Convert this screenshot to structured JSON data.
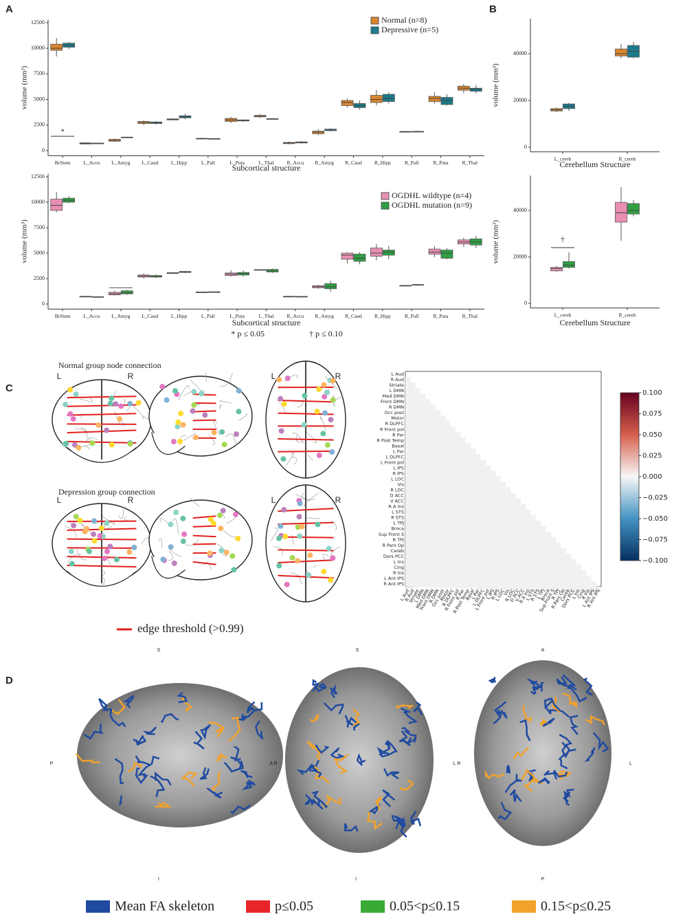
{
  "panel_labels": [
    "A",
    "B",
    "C",
    "D"
  ],
  "chart_data": [
    {
      "type": "box",
      "x_label": "Subcortical structure",
      "y_label": "volume (mm³)",
      "categories": [
        "BrStem",
        "L_Accu",
        "L_Amyg",
        "L_Caud",
        "L_Hipp",
        "L_Pall",
        "L_Puta",
        "L_Thal",
        "R_Accu",
        "R_Amyg",
        "R_Caud",
        "R_Hipp",
        "R_Pall",
        "R_Puta",
        "R_Thal"
      ],
      "series": [
        {
          "name": "Normal (n=8)",
          "color": "#d9862f",
          "values": [
            [
              9200,
              9800,
              10000,
              10400,
              11000
            ],
            [
              600,
              650,
              700,
              760,
              800
            ],
            [
              850,
              920,
              1000,
              1100,
              1200
            ],
            [
              2500,
              2650,
              2750,
              2850,
              2950
            ],
            [
              2950,
              3000,
              3050,
              3100,
              3150
            ],
            [
              1100,
              1150,
              1180,
              1200,
              1250
            ],
            [
              2700,
              2850,
              3000,
              3150,
              3300
            ],
            [
              3200,
              3300,
              3350,
              3450,
              3550
            ],
            [
              600,
              680,
              750,
              800,
              880
            ],
            [
              1500,
              1650,
              1800,
              1900,
              2100
            ],
            [
              4200,
              4400,
              4700,
              4900,
              5100
            ],
            [
              4400,
              4700,
              5000,
              5400,
              5900
            ],
            [
              1750,
              1800,
              1850,
              1870,
              1900
            ],
            [
              4600,
              4800,
              5100,
              5300,
              5700
            ],
            [
              5600,
              5900,
              6100,
              6300,
              6500
            ]
          ]
        },
        {
          "name": "Depressive (n=5)",
          "color": "#1b7a8c",
          "values": [
            [
              9900,
              10100,
              10300,
              10500,
              10600
            ],
            [
              680,
              700,
              720,
              730,
              740
            ],
            [
              1250,
              1280,
              1300,
              1320,
              1340
            ],
            [
              2550,
              2650,
              2700,
              2800,
              2900
            ],
            [
              3050,
              3200,
              3300,
              3400,
              3600
            ],
            [
              1120,
              1140,
              1160,
              1180,
              1200
            ],
            [
              2800,
              2900,
              2950,
              3000,
              3050
            ],
            [
              3050,
              3080,
              3100,
              3120,
              3150
            ],
            [
              700,
              750,
              800,
              850,
              950
            ],
            [
              1900,
              1950,
              2000,
              2100,
              2200
            ],
            [
              4000,
              4200,
              4400,
              4600,
              4900
            ],
            [
              4600,
              4800,
              5100,
              5500,
              5700
            ],
            [
              1800,
              1820,
              1850,
              1880,
              1950
            ],
            [
              4400,
              4500,
              4900,
              5200,
              5500
            ],
            [
              5600,
              5800,
              6000,
              6100,
              6400
            ]
          ]
        }
      ],
      "ylim": [
        -500,
        12800
      ],
      "yticks": [
        0,
        2500,
        5000,
        7500,
        10000,
        12500
      ],
      "annotation": "*"
    },
    {
      "type": "box",
      "x_label": "Subcortical structure",
      "y_label": "volume (mm³)",
      "categories": [
        "BrStem",
        "L_Accu",
        "L_Amyg",
        "L_Caud",
        "L_Hipp",
        "L_Pall",
        "L_Puta",
        "L_Thal",
        "R_Accu",
        "R_Amyg",
        "R_Caud",
        "R_Hipp",
        "R_Pall",
        "R_Puta",
        "R_Thal"
      ],
      "series": [
        {
          "name": "OGDHL wildtype (n=4)",
          "color": "#e88fb3",
          "values": [
            [
              9000,
              9200,
              9700,
              10300,
              11000
            ],
            [
              700,
              720,
              740,
              760,
              780
            ],
            [
              850,
              900,
              1000,
              1150,
              1300
            ],
            [
              2500,
              2650,
              2750,
              2850,
              3000
            ],
            [
              2950,
              3000,
              3050,
              3080,
              3100
            ],
            [
              1150,
              1160,
              1170,
              1180,
              1190
            ],
            [
              2700,
              2800,
              2950,
              3050,
              3300
            ],
            [
              3300,
              3320,
              3350,
              3380,
              3400
            ],
            [
              700,
              720,
              740,
              760,
              780
            ],
            [
              1500,
              1600,
              1700,
              1800,
              1900
            ],
            [
              4000,
              4400,
              4800,
              5000,
              5100
            ],
            [
              4300,
              4700,
              5000,
              5500,
              5900
            ],
            [
              1750,
              1780,
              1800,
              1830,
              1860
            ],
            [
              4600,
              4900,
              5100,
              5400,
              5700
            ],
            [
              5600,
              5900,
              6100,
              6300,
              6500
            ]
          ]
        },
        {
          "name": "OGDHL mutation (n=9)",
          "color": "#2ea043",
          "values": [
            [
              9900,
              10000,
              10200,
              10400,
              10600
            ],
            [
              650,
              680,
              700,
              720,
              740
            ],
            [
              900,
              1000,
              1100,
              1300,
              1400
            ],
            [
              2550,
              2650,
              2700,
              2800,
              2900
            ],
            [
              3050,
              3100,
              3150,
              3200,
              3250
            ],
            [
              1150,
              1170,
              1190,
              1200,
              1210
            ],
            [
              2700,
              2850,
              3000,
              3100,
              3300
            ],
            [
              3050,
              3150,
              3250,
              3400,
              3500
            ],
            [
              700,
              710,
              730,
              750,
              770
            ],
            [
              1200,
              1500,
              1700,
              2000,
              2300
            ],
            [
              3900,
              4200,
              4500,
              4900,
              5100
            ],
            [
              4400,
              4800,
              5100,
              5300,
              5700
            ],
            [
              1800,
              1850,
              1880,
              1920,
              1950
            ],
            [
              4400,
              4500,
              5000,
              5300,
              5500
            ],
            [
              5500,
              5800,
              6100,
              6400,
              6700
            ]
          ]
        }
      ],
      "ylim": [
        -500,
        12800
      ],
      "yticks": [
        0,
        2500,
        5000,
        7500,
        10000,
        12500
      ]
    },
    {
      "type": "box",
      "x_label": "Cerebellum Structure",
      "y_label": "volume (mm³)",
      "categories": [
        "L_cereb",
        "R_cereb"
      ],
      "series": [
        {
          "name": "Normal (n=8)",
          "color": "#d9862f",
          "values": [
            [
              15000,
              15500,
              16000,
              16500,
              17000
            ],
            [
              38000,
              39000,
              40000,
              42000,
              44000
            ]
          ]
        },
        {
          "name": "Depressive (n=5)",
          "color": "#1b7a8c",
          "values": [
            [
              15500,
              16500,
              17500,
              18500,
              19000
            ],
            [
              38000,
              38500,
              41000,
              43500,
              45000
            ]
          ]
        }
      ],
      "ylim": [
        -2000,
        55000
      ],
      "yticks": [
        0,
        20000,
        40000
      ]
    },
    {
      "type": "box",
      "x_label": "Cerebellum Structure",
      "y_label": "volume (mm³)",
      "categories": [
        "L_cereb",
        "R_cereb"
      ],
      "series": [
        {
          "name": "OGDHL wildtype (n=4)",
          "color": "#e88fb3",
          "values": [
            [
              13500,
              14000,
              15000,
              15500,
              16000
            ],
            [
              27000,
              35000,
              39000,
              43500,
              50000
            ]
          ]
        },
        {
          "name": "OGDHL mutation (n=9)",
          "color": "#2ea043",
          "values": [
            [
              15000,
              15500,
              16500,
              18000,
              22000
            ],
            [
              37500,
              38500,
              40000,
              43000,
              44500
            ]
          ]
        }
      ],
      "ylim": [
        -2000,
        55000
      ],
      "yticks": [
        0,
        20000,
        40000
      ],
      "annotation": "†"
    },
    {
      "type": "heatmap",
      "labels": [
        "L Aud",
        "R Aud",
        "Striate",
        "L DMN",
        "Med DMN",
        "Front DMN",
        "R DMN",
        "Occ post",
        "Motor",
        "R DLPFC",
        "R Front pol",
        "R Par",
        "R Post Temp",
        "Basal",
        "L Par",
        "L DLPFC",
        "L Front pol",
        "L IPS",
        "R IPS",
        "L LOC",
        "Vis",
        "R LOC",
        "D ACC",
        "V ACC",
        "R A Ins",
        "L STS",
        "R STS",
        "L TPJ",
        "Broca",
        "Sup Front S",
        "R TPJ",
        "R Pars Op",
        "Cereb",
        "Dors PCC",
        "L Ins",
        "Cing",
        "R Ins",
        "L Ant IPS",
        "R Ant IPS"
      ],
      "colorbar": {
        "colors": [
          "#67001f",
          "#d6604d",
          "#f7f7f7",
          "#4393c3",
          "#053061"
        ],
        "ylim": [
          -0.1,
          0.1
        ],
        "ticks": [
          {
            "value": 0.1,
            "label": "0.100"
          },
          {
            "value": 0.075,
            "label": "0.075"
          },
          {
            "value": 0.05,
            "label": "0.050"
          },
          {
            "value": 0.025,
            "label": "0.025"
          },
          {
            "value": 0,
            "label": "0.000"
          },
          {
            "value": -0.025,
            "label": "−0.025"
          },
          {
            "value": -0.05,
            "label": "−0.050"
          },
          {
            "value": -0.075,
            "label": "−0.075"
          },
          {
            "value": -0.1,
            "label": "−0.100"
          }
        ]
      }
    }
  ],
  "footnote": [
    "* p ≤ 0.05",
    "† p ≤ 0.10"
  ],
  "panel_c": {
    "normal_title": "Normal group node connection",
    "depression_title": "Depression group connection",
    "side_labels": [
      "L",
      "R"
    ],
    "edge_legend": "edge threshold (>0.99)",
    "edge_color": "#e0201e"
  },
  "panel_d": {
    "top_labels": [
      "S",
      "S",
      "A"
    ],
    "side_labels": [
      "P",
      "A R",
      "L R",
      "L"
    ],
    "bottom_labels": [
      "I",
      "I",
      "P"
    ],
    "legend": [
      "Mean FA skeleton",
      "p≤0.05",
      "0.05<p≤0.15",
      "0.15<p≤0.25"
    ],
    "legend_colors": [
      "#1f4aa0",
      "#e8262a",
      "#3aaa35",
      "#f2a22a"
    ]
  }
}
